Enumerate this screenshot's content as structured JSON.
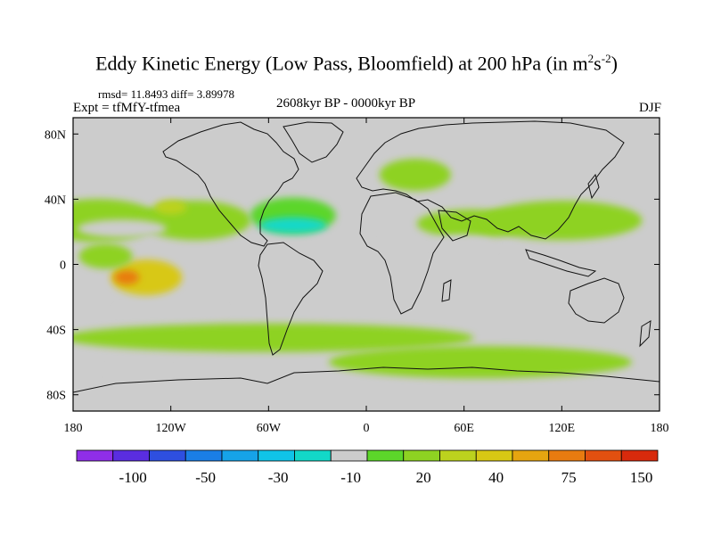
{
  "chart_data": {
    "type": "heatmap",
    "title": "Eddy Kinetic Energy (Low Pass, Bloomfield) at 200 hPa (in m²s⁻²)",
    "title_main": "Eddy Kinetic Energy (Low Pass, Bloomfield) at 200 hPa (in m",
    "title_unit_base1": "s",
    "title_sup1": "2",
    "title_sup2": "-2",
    "title_end": ")",
    "stats": "rmsd= 11.8493 diff= 3.89978",
    "experiment": "Expt = tfMfY-tfmea",
    "period": "2608kyr BP - 0000kyr BP",
    "season": "DJF",
    "x_range": [
      -180,
      180
    ],
    "y_range": [
      -90,
      90
    ],
    "x_ticks": [
      "180",
      "120W",
      "60W",
      "0",
      "60E",
      "120E",
      "180"
    ],
    "y_ticks": [
      "80N",
      "40N",
      "0",
      "40S",
      "80S"
    ],
    "colorbar": {
      "colors": [
        "#8f2ee8",
        "#5a2de0",
        "#2e4fe0",
        "#1a7ee6",
        "#16a3e8",
        "#10c4e8",
        "#12d8c8",
        "#cccccc",
        "#5cd62a",
        "#8ed222",
        "#bcd21e",
        "#d8c814",
        "#e6a510",
        "#e87b10",
        "#e25010",
        "#d82a0c"
      ],
      "labels": [
        "-100",
        "-50",
        "-30",
        "-10",
        "20",
        "40",
        "75",
        "150"
      ]
    },
    "anomaly_regions": [
      {
        "lon": -165,
        "lat": 27,
        "value": 20
      },
      {
        "lon": -105,
        "lat": 27,
        "value": 20
      },
      {
        "lon": -45,
        "lat": 30,
        "value": 15
      },
      {
        "lon": 30,
        "lat": 55,
        "value": 20
      },
      {
        "lon": 65,
        "lat": 25,
        "value": 20
      },
      {
        "lon": 120,
        "lat": 27,
        "value": 20
      },
      {
        "lon": -135,
        "lat": -8,
        "value": 40
      },
      {
        "lon": -147,
        "lat": -8,
        "value": 75
      },
      {
        "lon": -160,
        "lat": 5,
        "value": 20
      },
      {
        "lon": -60,
        "lat": -45,
        "value": 20
      },
      {
        "lon": 70,
        "lat": -60,
        "value": 20
      },
      {
        "lon": -120,
        "lat": 35,
        "value": 30
      },
      {
        "lon": -150,
        "lat": 22,
        "value": -10
      },
      {
        "lon": -45,
        "lat": 24,
        "value": -15
      },
      {
        "lon": -15,
        "lat": 10,
        "value": -10
      },
      {
        "lon": 60,
        "lat": 12,
        "value": -10
      },
      {
        "lon": -120,
        "lat": -28,
        "value": -10
      },
      {
        "lon": -140,
        "lat": -65,
        "value": -10
      }
    ]
  }
}
